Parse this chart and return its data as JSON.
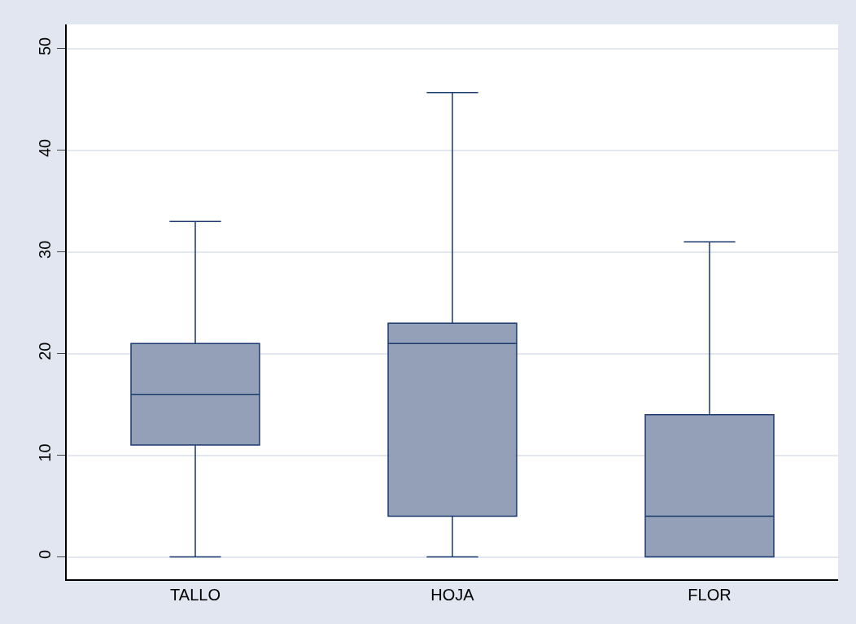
{
  "chart_data": {
    "type": "box",
    "categories": [
      "TALLO",
      "HOJA",
      "FLOR"
    ],
    "boxes": [
      {
        "low": 0,
        "q1": 11,
        "median": 16,
        "q3": 21,
        "high": 33
      },
      {
        "low": 0,
        "q1": 4,
        "median": 21,
        "q3": 23,
        "high": 45.7
      },
      {
        "low": 0,
        "q1": 0,
        "median": 4,
        "q3": 14,
        "high": 31
      }
    ],
    "color": "#94a0b8",
    "ylim": [
      -2.2,
      52.4
    ],
    "yticks": [
      0,
      10,
      20,
      30,
      40,
      50
    ],
    "grid": "y",
    "legend": false
  }
}
